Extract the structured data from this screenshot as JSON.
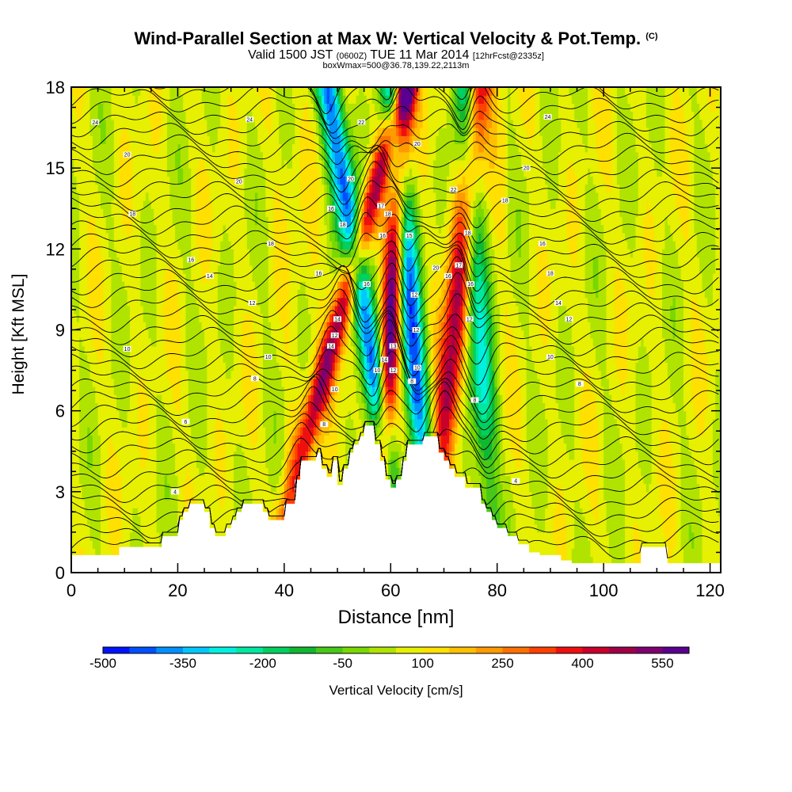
{
  "title": {
    "main": "Wind-Parallel Section at Max W: Vertical Velocity & Pot.Temp.",
    "copyright": "(C)",
    "valid_prefix": "Valid 1500 JST",
    "valid_zulu": "(0600Z)",
    "valid_date": "TUE 11 Mar 2014",
    "forecast": "[12hrFcst@2335z]",
    "box": "boxWmax=500@36.78,139.22,2113m"
  },
  "chart_data": {
    "type": "heatmap",
    "xlabel": "Distance [nm]",
    "ylabel": "Height [Kft MSL]",
    "xlim": [
      0,
      122
    ],
    "ylim": [
      0,
      18
    ],
    "x_ticks": [
      0,
      20,
      40,
      60,
      80,
      100,
      120
    ],
    "y_ticks": [
      0,
      3,
      6,
      9,
      12,
      15,
      18
    ],
    "colorbar": {
      "label": "Vertical Velocity [cm/s]",
      "tick_labels": [
        "-500",
        "-350",
        "-200",
        "-50",
        "100",
        "250",
        "400",
        "550"
      ],
      "colors": [
        "#0014ff",
        "#0050ff",
        "#0090ff",
        "#00c8ff",
        "#00f0e0",
        "#00e8a0",
        "#00d060",
        "#10b830",
        "#48c818",
        "#78d800",
        "#b0e400",
        "#e6f000",
        "#ffe000",
        "#ffc000",
        "#ff9a00",
        "#ff7000",
        "#ff4000",
        "#ee1010",
        "#c8002a",
        "#a00048",
        "#800070",
        "#5a0090"
      ]
    },
    "terrain": [
      [
        0,
        0.65
      ],
      [
        8,
        0.65
      ],
      [
        9,
        0.95
      ],
      [
        16,
        0.95
      ],
      [
        17,
        1.35
      ],
      [
        19,
        1.35
      ],
      [
        20,
        1.95
      ],
      [
        21,
        2.25
      ],
      [
        22,
        2.55
      ],
      [
        24,
        2.55
      ],
      [
        25,
        2.25
      ],
      [
        26,
        1.65
      ],
      [
        27,
        1.35
      ],
      [
        28,
        1.35
      ],
      [
        29,
        1.65
      ],
      [
        30,
        1.95
      ],
      [
        31,
        2.25
      ],
      [
        32,
        2.55
      ],
      [
        35,
        2.55
      ],
      [
        36,
        2.25
      ],
      [
        37,
        1.95
      ],
      [
        39,
        1.95
      ],
      [
        40,
        2.55
      ],
      [
        42,
        3.45
      ],
      [
        43,
        4.15
      ],
      [
        46,
        4.45
      ],
      [
        47,
        3.85
      ],
      [
        48,
        3.55
      ],
      [
        49,
        4.15
      ],
      [
        50,
        3.25
      ],
      [
        51,
        3.85
      ],
      [
        52,
        4.45
      ],
      [
        53,
        4.75
      ],
      [
        54,
        5.05
      ],
      [
        55,
        5.45
      ],
      [
        56,
        5.45
      ],
      [
        57,
        4.75
      ],
      [
        58,
        4.15
      ],
      [
        59,
        3.45
      ],
      [
        60,
        3.15
      ],
      [
        61,
        3.45
      ],
      [
        62,
        4.15
      ],
      [
        63,
        4.75
      ],
      [
        65,
        4.75
      ],
      [
        66,
        5.05
      ],
      [
        68,
        5.05
      ],
      [
        69,
        4.45
      ],
      [
        70,
        4.15
      ],
      [
        71,
        3.85
      ],
      [
        72,
        3.55
      ],
      [
        73,
        3.55
      ],
      [
        74,
        3.15
      ],
      [
        76,
        3.15
      ],
      [
        77,
        2.55
      ],
      [
        78,
        2.25
      ],
      [
        79,
        1.95
      ],
      [
        80,
        1.65
      ],
      [
        82,
        1.35
      ],
      [
        84,
        1.05
      ],
      [
        86,
        0.75
      ],
      [
        88,
        0.65
      ],
      [
        90,
        0.65
      ],
      [
        92,
        0.45
      ],
      [
        94,
        0.35
      ],
      [
        106,
        0.35
      ],
      [
        107,
        0.95
      ],
      [
        110,
        0.95
      ],
      [
        112,
        0.35
      ],
      [
        122,
        0.35
      ]
    ],
    "updraft_bands": [
      {
        "x0": 48.5,
        "x1": 51.0,
        "lean": 1.4,
        "peak_w": 400
      },
      {
        "x0": 59.0,
        "x1": 61.0,
        "lean": 0.3,
        "peak_w": 550
      },
      {
        "x0": 70.5,
        "x1": 73.5,
        "lean": 0.5,
        "peak_w": 400
      }
    ],
    "downdraft_bands": [
      {
        "x0": 54.0,
        "x1": 57.0,
        "lean": -0.8,
        "peak_w": -500
      },
      {
        "x0": 62.5,
        "x1": 65.5,
        "lean": -0.4,
        "peak_w": -500
      },
      {
        "x0": 75.0,
        "x1": 78.0,
        "lean": -0.3,
        "peak_w": -350
      }
    ],
    "isentrope_values": [
      8,
      9,
      10,
      11,
      12,
      13,
      14,
      15,
      16,
      17,
      18,
      19,
      20,
      21,
      22,
      23,
      24,
      25,
      26
    ],
    "isentrope_labels": [
      {
        "x": 4.5,
        "y": 16.7,
        "text": "24"
      },
      {
        "x": 33.5,
        "y": 16.8,
        "text": "24"
      },
      {
        "x": 89.5,
        "y": 16.9,
        "text": "24"
      },
      {
        "x": 10.5,
        "y": 15.5,
        "text": "20"
      },
      {
        "x": 31.5,
        "y": 14.5,
        "text": "20"
      },
      {
        "x": 85.5,
        "y": 15.0,
        "text": "20"
      },
      {
        "x": 11.5,
        "y": 13.3,
        "text": "18"
      },
      {
        "x": 37.5,
        "y": 12.2,
        "text": "18"
      },
      {
        "x": 81.5,
        "y": 13.8,
        "text": "18"
      },
      {
        "x": 22.5,
        "y": 11.6,
        "text": "16"
      },
      {
        "x": 26.0,
        "y": 11.0,
        "text": "14"
      },
      {
        "x": 88.5,
        "y": 12.2,
        "text": "16"
      },
      {
        "x": 90.0,
        "y": 11.1,
        "text": "18"
      },
      {
        "x": 91.5,
        "y": 10.0,
        "text": "14"
      },
      {
        "x": 34.0,
        "y": 10.0,
        "text": "12"
      },
      {
        "x": 93.5,
        "y": 9.4,
        "text": "12"
      },
      {
        "x": 10.5,
        "y": 8.3,
        "text": "10"
      },
      {
        "x": 37.0,
        "y": 8.0,
        "text": "10"
      },
      {
        "x": 90.0,
        "y": 8.0,
        "text": "10"
      },
      {
        "x": 34.5,
        "y": 7.2,
        "text": "8"
      },
      {
        "x": 95.5,
        "y": 7.0,
        "text": "8"
      },
      {
        "x": 21.5,
        "y": 5.6,
        "text": "6"
      },
      {
        "x": 19.5,
        "y": 3.0,
        "text": "4"
      },
      {
        "x": 83.5,
        "y": 3.4,
        "text": "4"
      },
      {
        "x": 46.5,
        "y": 11.1,
        "text": "16"
      },
      {
        "x": 48.8,
        "y": 13.5,
        "text": "16"
      },
      {
        "x": 51.0,
        "y": 12.9,
        "text": "18"
      },
      {
        "x": 52.5,
        "y": 14.6,
        "text": "20"
      },
      {
        "x": 54.5,
        "y": 16.7,
        "text": "22"
      },
      {
        "x": 50.0,
        "y": 9.4,
        "text": "14"
      },
      {
        "x": 48.8,
        "y": 8.4,
        "text": "14"
      },
      {
        "x": 49.5,
        "y": 8.8,
        "text": "12"
      },
      {
        "x": 49.5,
        "y": 6.8,
        "text": "10"
      },
      {
        "x": 47.5,
        "y": 5.5,
        "text": "8"
      },
      {
        "x": 55.5,
        "y": 10.7,
        "text": "16"
      },
      {
        "x": 58.2,
        "y": 13.6,
        "text": "17"
      },
      {
        "x": 59.5,
        "y": 13.3,
        "text": "18"
      },
      {
        "x": 58.5,
        "y": 12.5,
        "text": "16"
      },
      {
        "x": 57.5,
        "y": 7.5,
        "text": "10"
      },
      {
        "x": 58.8,
        "y": 7.9,
        "text": "14"
      },
      {
        "x": 60.5,
        "y": 8.4,
        "text": "13"
      },
      {
        "x": 60.5,
        "y": 7.5,
        "text": "12"
      },
      {
        "x": 63.5,
        "y": 12.5,
        "text": "15"
      },
      {
        "x": 64.5,
        "y": 10.3,
        "text": "12"
      },
      {
        "x": 64.8,
        "y": 9.0,
        "text": "12"
      },
      {
        "x": 65.0,
        "y": 7.6,
        "text": "10"
      },
      {
        "x": 64.0,
        "y": 7.1,
        "text": "8"
      },
      {
        "x": 65.0,
        "y": 15.9,
        "text": "20"
      },
      {
        "x": 71.8,
        "y": 14.2,
        "text": "22"
      },
      {
        "x": 68.5,
        "y": 11.3,
        "text": "20"
      },
      {
        "x": 70.8,
        "y": 11.0,
        "text": "16"
      },
      {
        "x": 72.8,
        "y": 11.4,
        "text": "17"
      },
      {
        "x": 74.5,
        "y": 12.6,
        "text": "18"
      },
      {
        "x": 75.0,
        "y": 10.7,
        "text": "16"
      },
      {
        "x": 74.8,
        "y": 9.4,
        "text": "12"
      },
      {
        "x": 75.8,
        "y": 6.4,
        "text": "8"
      }
    ]
  }
}
